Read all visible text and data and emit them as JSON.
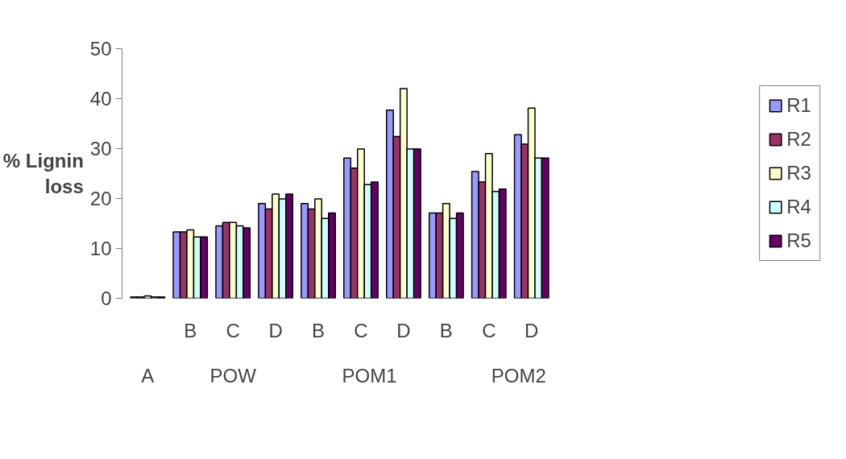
{
  "chart_data": {
    "type": "bar",
    "ylabel": "% Lignin loss",
    "categories": [
      null,
      "B",
      "C",
      "D",
      "B",
      "C",
      "D",
      "B",
      "C",
      "D"
    ],
    "series": [
      {
        "name": "R1",
        "color": "#9999ff",
        "values": [
          0.3,
          13.3,
          14.5,
          19.0,
          19.0,
          28.1,
          37.7,
          17.1,
          25.4,
          32.8
        ]
      },
      {
        "name": "R2",
        "color": "#993366",
        "values": [
          0.3,
          13.3,
          15.2,
          17.9,
          17.9,
          26.1,
          32.4,
          17.1,
          23.3,
          30.9
        ]
      },
      {
        "name": "R3",
        "color": "#ffffcc",
        "values": [
          0.5,
          13.7,
          15.2,
          20.9,
          19.9,
          29.9,
          42.0,
          19.0,
          29.0,
          38.1
        ]
      },
      {
        "name": "R4",
        "color": "#ccffff",
        "values": [
          0.3,
          12.3,
          14.5,
          19.9,
          16.0,
          22.8,
          29.9,
          16.0,
          21.4,
          28.1
        ]
      },
      {
        "name": "R5",
        "color": "#660066",
        "values": [
          0.3,
          12.3,
          14.1,
          20.9,
          17.1,
          23.3,
          29.9,
          17.1,
          21.9,
          28.1
        ]
      }
    ],
    "annotations": [
      "A",
      "POW",
      "POM1",
      "POM2"
    ],
    "ylim": [
      0,
      50
    ],
    "yticks": [
      0,
      10,
      20,
      30,
      40,
      50
    ],
    "grid": false,
    "legend": "right"
  }
}
